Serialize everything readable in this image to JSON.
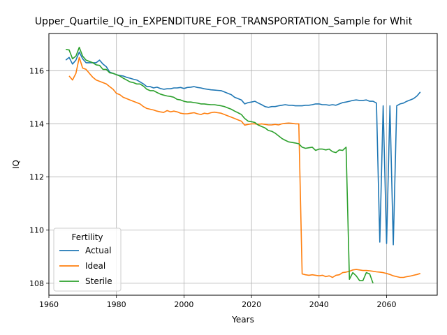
{
  "chart_data": {
    "type": "line",
    "title": "Upper_Quartile_IQ_in_EXPENDITURE_FOR_TRANSPORTATION_Sample for Whit",
    "xlabel": "Years",
    "ylabel": "IQ",
    "xlim": [
      1960,
      2075
    ],
    "ylim": [
      107.55,
      117.4
    ],
    "xticks": [
      1960,
      1980,
      2000,
      2020,
      2040,
      2060
    ],
    "yticks": [
      108,
      110,
      112,
      114,
      116
    ],
    "grid": true,
    "legend": {
      "title": "Fertility",
      "placement": "lower-left"
    },
    "series": [
      {
        "name": "Actual",
        "color": "#1f77b4",
        "x": [
          1965,
          1966,
          1967,
          1968,
          1969,
          1970,
          1971,
          1972,
          1973,
          1974,
          1975,
          1976,
          1977,
          1978,
          1979,
          1980,
          1981,
          1982,
          1983,
          1984,
          1985,
          1986,
          1987,
          1988,
          1989,
          1990,
          1991,
          1992,
          1993,
          1994,
          1995,
          1996,
          1997,
          1998,
          1999,
          2000,
          2001,
          2002,
          2003,
          2004,
          2005,
          2006,
          2007,
          2008,
          2009,
          2010,
          2011,
          2012,
          2013,
          2014,
          2015,
          2016,
          2017,
          2018,
          2019,
          2020,
          2021,
          2022,
          2023,
          2024,
          2025,
          2026,
          2027,
          2028,
          2029,
          2030,
          2031,
          2032,
          2033,
          2034,
          2035,
          2036,
          2037,
          2038,
          2039,
          2040,
          2041,
          2042,
          2043,
          2044,
          2045,
          2046,
          2047,
          2048,
          2049,
          2050,
          2051,
          2052,
          2053,
          2054,
          2055,
          2056,
          2057,
          2058,
          2059,
          2060,
          2061,
          2062,
          2063,
          2064,
          2065,
          2066,
          2067,
          2068,
          2069,
          2070
        ],
        "values": [
          116.4,
          116.5,
          116.25,
          116.4,
          116.7,
          116.45,
          116.3,
          116.3,
          116.3,
          116.3,
          116.4,
          116.25,
          116.15,
          115.95,
          115.9,
          115.85,
          115.82,
          115.8,
          115.75,
          115.72,
          115.68,
          115.65,
          115.58,
          115.5,
          115.4,
          115.4,
          115.35,
          115.38,
          115.33,
          115.3,
          115.32,
          115.32,
          115.35,
          115.35,
          115.37,
          115.33,
          115.37,
          115.38,
          115.4,
          115.37,
          115.35,
          115.32,
          115.3,
          115.28,
          115.27,
          115.26,
          115.25,
          115.2,
          115.15,
          115.1,
          115.0,
          114.95,
          114.9,
          114.75,
          114.8,
          114.82,
          114.85,
          114.78,
          114.72,
          114.65,
          114.62,
          114.65,
          114.65,
          114.68,
          114.7,
          114.72,
          114.7,
          114.7,
          114.68,
          114.68,
          114.68,
          114.7,
          114.7,
          114.72,
          114.75,
          114.75,
          114.72,
          114.72,
          114.7,
          114.72,
          114.7,
          114.75,
          114.8,
          114.82,
          114.85,
          114.88,
          114.9,
          114.88,
          114.88,
          114.9,
          114.85,
          114.85,
          114.78,
          109.55,
          114.68,
          109.5,
          114.68,
          109.45,
          114.68,
          114.75,
          114.78,
          114.85,
          114.9,
          114.95,
          115.05,
          115.2
        ]
      },
      {
        "name": "Ideal",
        "color": "#ff7f0e",
        "x": [
          1966,
          1967,
          1968,
          1969,
          1970,
          1971,
          1972,
          1973,
          1974,
          1975,
          1976,
          1977,
          1978,
          1979,
          1980,
          1981,
          1982,
          1983,
          1984,
          1985,
          1986,
          1987,
          1988,
          1989,
          1990,
          1991,
          1992,
          1993,
          1994,
          1995,
          1996,
          1997,
          1998,
          1999,
          2000,
          2001,
          2002,
          2003,
          2004,
          2005,
          2006,
          2007,
          2008,
          2009,
          2010,
          2011,
          2012,
          2013,
          2014,
          2015,
          2016,
          2017,
          2018,
          2019,
          2020,
          2021,
          2022,
          2023,
          2024,
          2025,
          2026,
          2027,
          2028,
          2029,
          2030,
          2031,
          2032,
          2033,
          2034,
          2035,
          2036,
          2037,
          2038,
          2039,
          2040,
          2041,
          2042,
          2043,
          2044,
          2045,
          2046,
          2047,
          2048,
          2049,
          2050,
          2051,
          2052,
          2053,
          2054,
          2055,
          2056,
          2057,
          2058,
          2059,
          2060,
          2061,
          2062,
          2063,
          2064,
          2065,
          2066,
          2067,
          2068,
          2069,
          2070
        ],
        "values": [
          115.8,
          115.65,
          115.9,
          116.5,
          116.1,
          116.05,
          115.9,
          115.75,
          115.65,
          115.6,
          115.55,
          115.5,
          115.4,
          115.3,
          115.15,
          115.1,
          115.0,
          114.95,
          114.9,
          114.85,
          114.8,
          114.75,
          114.65,
          114.58,
          114.55,
          114.52,
          114.48,
          114.45,
          114.43,
          114.5,
          114.45,
          114.48,
          114.45,
          114.4,
          114.38,
          114.38,
          114.4,
          114.42,
          114.38,
          114.35,
          114.4,
          114.38,
          114.42,
          114.44,
          114.42,
          114.4,
          114.35,
          114.3,
          114.25,
          114.2,
          114.15,
          114.1,
          113.95,
          113.98,
          114.0,
          114.0,
          113.98,
          114.0,
          113.98,
          113.96,
          113.96,
          113.98,
          113.96,
          114.0,
          114.02,
          114.03,
          114.02,
          114.0,
          114.0,
          108.35,
          108.32,
          108.3,
          108.32,
          108.3,
          108.28,
          108.3,
          108.25,
          108.28,
          108.22,
          108.3,
          108.32,
          108.4,
          108.42,
          108.45,
          108.5,
          108.52,
          108.5,
          108.48,
          108.48,
          108.47,
          108.45,
          108.43,
          108.42,
          108.4,
          108.37,
          108.33,
          108.28,
          108.25,
          108.22,
          108.22,
          108.25,
          108.27,
          108.3,
          108.33,
          108.37
        ],
        "line_color": "#ff7f0e"
      },
      {
        "name": "Sterile",
        "color": "#2ca02c",
        "x": [
          1965,
          1966,
          1967,
          1968,
          1969,
          1970,
          1971,
          1972,
          1973,
          1974,
          1975,
          1976,
          1977,
          1978,
          1979,
          1980,
          1981,
          1982,
          1983,
          1984,
          1985,
          1986,
          1987,
          1988,
          1989,
          1990,
          1991,
          1992,
          1993,
          1994,
          1995,
          1996,
          1997,
          1998,
          1999,
          2000,
          2001,
          2002,
          2003,
          2004,
          2005,
          2006,
          2007,
          2008,
          2009,
          2010,
          2011,
          2012,
          2013,
          2014,
          2015,
          2016,
          2017,
          2018,
          2019,
          2020,
          2021,
          2022,
          2023,
          2024,
          2025,
          2026,
          2027,
          2028,
          2029,
          2030,
          2031,
          2032,
          2033,
          2034,
          2035,
          2036,
          2037,
          2038,
          2039,
          2040,
          2041,
          2042,
          2043,
          2044,
          2045,
          2046,
          2047,
          2048,
          2049,
          2050,
          2051,
          2052,
          2053,
          2054,
          2055,
          2056
        ],
        "values": [
          116.8,
          116.78,
          116.45,
          116.55,
          116.88,
          116.55,
          116.4,
          116.35,
          116.3,
          116.22,
          116.2,
          116.05,
          116.05,
          115.92,
          115.9,
          115.85,
          115.8,
          115.72,
          115.65,
          115.58,
          115.55,
          115.5,
          115.5,
          115.42,
          115.3,
          115.25,
          115.25,
          115.18,
          115.12,
          115.08,
          115.05,
          115.03,
          115.0,
          114.92,
          114.9,
          114.85,
          114.82,
          114.82,
          114.8,
          114.78,
          114.75,
          114.75,
          114.73,
          114.72,
          114.72,
          114.7,
          114.68,
          114.65,
          114.6,
          114.55,
          114.48,
          114.42,
          114.35,
          114.2,
          114.1,
          114.08,
          114.05,
          113.95,
          113.9,
          113.85,
          113.75,
          113.72,
          113.65,
          113.55,
          113.45,
          113.38,
          113.32,
          113.3,
          113.28,
          113.25,
          113.12,
          113.08,
          113.1,
          113.12,
          113.0,
          113.05,
          113.05,
          113.02,
          113.05,
          112.95,
          112.92,
          113.02,
          113.0,
          113.12,
          108.15,
          108.4,
          108.28,
          108.1,
          108.1,
          108.4,
          108.35,
          108.0
        ]
      }
    ]
  }
}
